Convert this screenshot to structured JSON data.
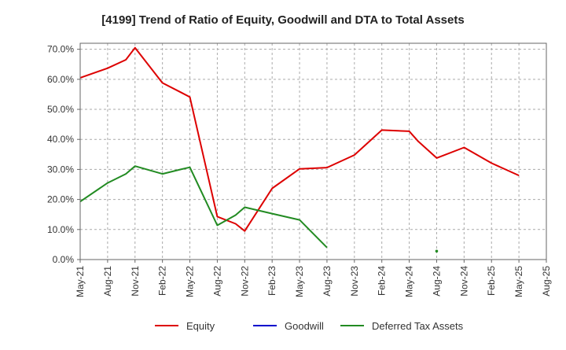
{
  "chart_data": {
    "type": "line",
    "title": "[4199]  Trend of Ratio of Equity, Goodwill and DTA to Total Assets",
    "xlabel": "",
    "ylabel": "",
    "ylim": [
      0,
      0.72
    ],
    "y_ticks": [
      0,
      0.1,
      0.2,
      0.3,
      0.4,
      0.5,
      0.6,
      0.7
    ],
    "y_tick_labels": [
      "0.0%",
      "10.0%",
      "20.0%",
      "30.0%",
      "40.0%",
      "50.0%",
      "60.0%",
      "70.0%"
    ],
    "x_tick_labels": [
      "May-21",
      "Aug-21",
      "Nov-21",
      "Feb-22",
      "May-22",
      "Aug-22",
      "Nov-22",
      "Feb-23",
      "May-23",
      "Aug-23",
      "Nov-23",
      "Feb-24",
      "May-24",
      "Aug-24",
      "Nov-24",
      "Feb-25",
      "May-25",
      "Aug-25"
    ],
    "x_range": [
      "2021-05",
      "2025-08"
    ],
    "grid": true,
    "legend_position": "bottom",
    "series": [
      {
        "name": "Equity",
        "color": "#dd0000",
        "points": [
          [
            "2021-05",
            0.605
          ],
          [
            "2021-08",
            0.637
          ],
          [
            "2021-10",
            0.665
          ],
          [
            "2021-11",
            0.705
          ],
          [
            "2022-02",
            0.588
          ],
          [
            "2022-04",
            0.557
          ],
          [
            "2022-05",
            0.541
          ],
          [
            "2022-08",
            0.143
          ],
          [
            "2022-10",
            0.119
          ],
          [
            "2022-11",
            0.095
          ],
          [
            "2023-02",
            0.237
          ],
          [
            "2023-05",
            0.302
          ],
          [
            "2023-08",
            0.306
          ],
          [
            "2023-11",
            0.348
          ],
          [
            "2024-02",
            0.431
          ],
          [
            "2024-05",
            0.427
          ],
          [
            "2024-06",
            0.393
          ],
          [
            "2024-08",
            0.338
          ],
          [
            "2024-11",
            0.373
          ],
          [
            "2025-02",
            0.321
          ],
          [
            "2025-05",
            0.28
          ]
        ]
      },
      {
        "name": "Goodwill",
        "color": "#0000cc",
        "points": []
      },
      {
        "name": "Deferred Tax Assets",
        "color": "#228b22",
        "points": [
          [
            "2021-05",
            0.193
          ],
          [
            "2021-08",
            0.255
          ],
          [
            "2021-10",
            0.285
          ],
          [
            "2021-11",
            0.311
          ],
          [
            "2022-02",
            0.285
          ],
          [
            "2022-04",
            0.3
          ],
          [
            "2022-05",
            0.307
          ],
          [
            "2022-08",
            0.114
          ],
          [
            "2022-10",
            0.148
          ],
          [
            "2022-11",
            0.174
          ],
          [
            "2023-02",
            0.153
          ],
          [
            "2023-05",
            0.132
          ],
          [
            "2023-08",
            0.04
          ],
          [
            "2024-08",
            0.028
          ]
        ]
      }
    ]
  }
}
